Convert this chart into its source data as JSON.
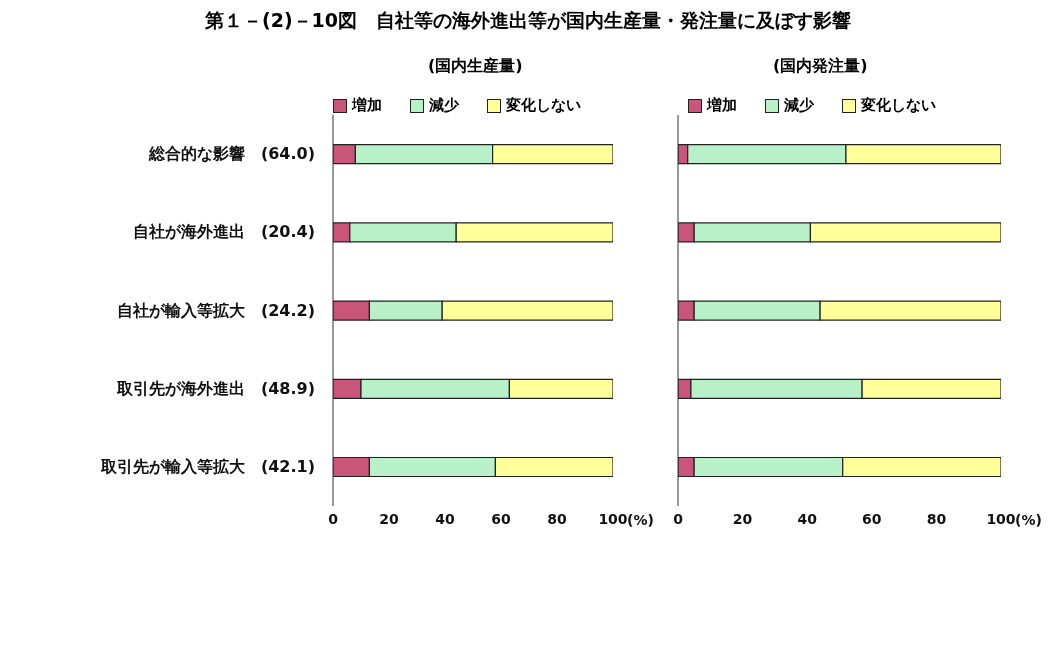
{
  "chart_data": [
    {
      "type": "bar",
      "title": "第１－(2)－10図　自社等の海外進出等が国内生産量・発注量に及ぼす影響",
      "subtitle": "(国内生産量)",
      "orientation": "horizontal",
      "stacked": true,
      "categories": [
        "総合的な影響　(64.0)",
        "自社が海外進出　(20.4)",
        "自社が輸入等拡大　(24.2)",
        "取引先が海外進出　(48.9)",
        "取引先が輸入等拡大　(42.1)"
      ],
      "series": [
        {
          "name": "増加",
          "color": "#c9567a",
          "values": [
            8,
            6,
            13,
            10,
            13
          ]
        },
        {
          "name": "減少",
          "color": "#b8f0c8",
          "values": [
            49,
            38,
            26,
            53,
            45
          ]
        },
        {
          "name": "変化しない",
          "color": "#ffff99",
          "values": [
            43,
            56,
            61,
            37,
            42
          ]
        }
      ],
      "xlabel": "(%)",
      "xlim": [
        0,
        100
      ],
      "xticks": [
        0,
        20,
        40,
        60,
        80,
        100
      ],
      "legend": "top",
      "grid": false
    },
    {
      "type": "bar",
      "subtitle": "(国内発注量)",
      "orientation": "horizontal",
      "stacked": true,
      "categories": [
        null,
        null,
        null,
        null,
        null
      ],
      "series": [
        {
          "name": "増加",
          "color": "#c9567a",
          "values": [
            3,
            5,
            5,
            4,
            5
          ]
        },
        {
          "name": "減少",
          "color": "#b8f0c8",
          "values": [
            49,
            36,
            39,
            53,
            46
          ]
        },
        {
          "name": "変化しない",
          "color": "#ffff99",
          "values": [
            48,
            59,
            56,
            43,
            49
          ]
        }
      ],
      "xlabel": "(%)",
      "xlim": [
        0,
        100
      ],
      "xticks": [
        0,
        20,
        40,
        60,
        80,
        100
      ],
      "legend": "top",
      "grid": false,
      "tick_labels": "x"
    }
  ]
}
